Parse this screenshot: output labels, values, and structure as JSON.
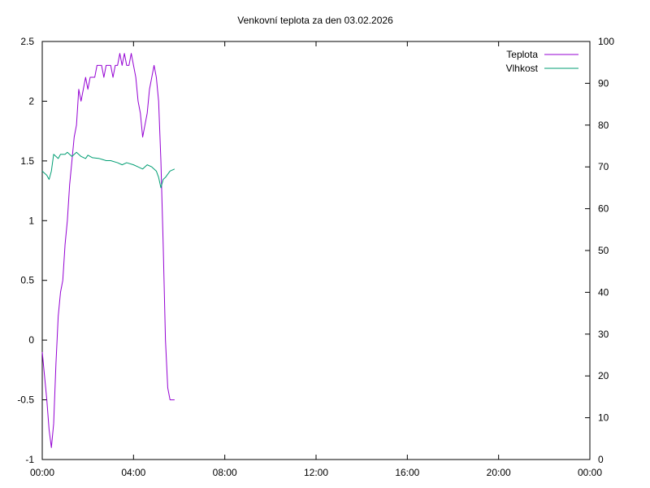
{
  "chart_data": {
    "type": "line",
    "title": "Venkovní teplota za den 03.02.2026",
    "xlabel": "",
    "ylabel": "",
    "y2label": "",
    "x_ticks": [
      "00:00",
      "04:00",
      "08:00",
      "12:00",
      "16:00",
      "20:00",
      "00:00"
    ],
    "xlim_hours": [
      0,
      24
    ],
    "y_ticks": [
      "-1",
      "-0.5",
      "0",
      "0.5",
      "1",
      "1.5",
      "2",
      "2.5"
    ],
    "ylim": [
      -1,
      2.5
    ],
    "y2_ticks": [
      "0",
      "10",
      "20",
      "30",
      "40",
      "50",
      "60",
      "70",
      "80",
      "90",
      "100"
    ],
    "y2lim": [
      0,
      100
    ],
    "grid": false,
    "legend_position": "top-right",
    "series": [
      {
        "name": "Teplota",
        "axis": "left",
        "color": "#9400d3",
        "points": [
          [
            0.0,
            -0.1
          ],
          [
            0.1,
            -0.3
          ],
          [
            0.2,
            -0.5
          ],
          [
            0.3,
            -0.75
          ],
          [
            0.4,
            -0.9
          ],
          [
            0.5,
            -0.7
          ],
          [
            0.6,
            -0.2
          ],
          [
            0.7,
            0.2
          ],
          [
            0.8,
            0.4
          ],
          [
            0.9,
            0.5
          ],
          [
            1.0,
            0.8
          ],
          [
            1.1,
            1.0
          ],
          [
            1.2,
            1.3
          ],
          [
            1.3,
            1.5
          ],
          [
            1.4,
            1.7
          ],
          [
            1.5,
            1.8
          ],
          [
            1.6,
            2.1
          ],
          [
            1.7,
            2.0
          ],
          [
            1.8,
            2.1
          ],
          [
            1.9,
            2.2
          ],
          [
            2.0,
            2.1
          ],
          [
            2.1,
            2.2
          ],
          [
            2.2,
            2.2
          ],
          [
            2.3,
            2.2
          ],
          [
            2.4,
            2.3
          ],
          [
            2.6,
            2.3
          ],
          [
            2.7,
            2.2
          ],
          [
            2.8,
            2.3
          ],
          [
            3.0,
            2.3
          ],
          [
            3.1,
            2.2
          ],
          [
            3.2,
            2.3
          ],
          [
            3.3,
            2.3
          ],
          [
            3.4,
            2.4
          ],
          [
            3.5,
            2.3
          ],
          [
            3.6,
            2.4
          ],
          [
            3.7,
            2.3
          ],
          [
            3.8,
            2.3
          ],
          [
            3.9,
            2.4
          ],
          [
            4.0,
            2.3
          ],
          [
            4.1,
            2.2
          ],
          [
            4.2,
            2.0
          ],
          [
            4.3,
            1.9
          ],
          [
            4.4,
            1.7
          ],
          [
            4.5,
            1.8
          ],
          [
            4.6,
            1.9
          ],
          [
            4.7,
            2.1
          ],
          [
            4.8,
            2.2
          ],
          [
            4.9,
            2.3
          ],
          [
            5.0,
            2.2
          ],
          [
            5.1,
            2.0
          ],
          [
            5.2,
            1.5
          ],
          [
            5.3,
            0.8
          ],
          [
            5.4,
            0.0
          ],
          [
            5.5,
            -0.4
          ],
          [
            5.6,
            -0.5
          ],
          [
            5.8,
            -0.5
          ]
        ]
      },
      {
        "name": "Vlhkost",
        "axis": "right",
        "color": "#009e73",
        "points": [
          [
            0.0,
            69
          ],
          [
            0.2,
            68
          ],
          [
            0.3,
            67
          ],
          [
            0.4,
            69
          ],
          [
            0.5,
            73
          ],
          [
            0.7,
            72
          ],
          [
            0.8,
            73
          ],
          [
            1.0,
            73
          ],
          [
            1.1,
            73.5
          ],
          [
            1.3,
            72.5
          ],
          [
            1.5,
            73.5
          ],
          [
            1.7,
            72.5
          ],
          [
            1.9,
            72
          ],
          [
            2.0,
            72.8
          ],
          [
            2.2,
            72.2
          ],
          [
            2.5,
            72
          ],
          [
            2.8,
            71.5
          ],
          [
            3.0,
            71.5
          ],
          [
            3.3,
            71
          ],
          [
            3.5,
            70.5
          ],
          [
            3.7,
            71
          ],
          [
            4.0,
            70.5
          ],
          [
            4.2,
            70
          ],
          [
            4.4,
            69.5
          ],
          [
            4.6,
            70.5
          ],
          [
            4.8,
            70
          ],
          [
            5.0,
            69
          ],
          [
            5.1,
            67.5
          ],
          [
            5.2,
            65
          ],
          [
            5.3,
            67
          ],
          [
            5.4,
            67.5
          ],
          [
            5.6,
            69
          ],
          [
            5.8,
            69.5
          ]
        ]
      }
    ]
  }
}
